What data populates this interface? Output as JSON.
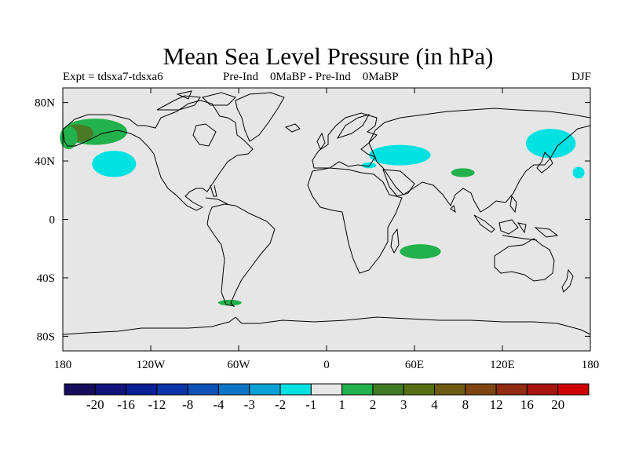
{
  "title": "Mean Sea Level Pressure (in hPa)",
  "subtitle_left": "Expt = tdsxa7-tdsxa6",
  "subtitle_center": "Pre-Ind    0MaBP - Pre-Ind    0MaBP",
  "subtitle_right": "DJF",
  "map": {
    "lon_range": [
      -180,
      180
    ],
    "lat_range": [
      -90,
      90
    ],
    "ocean_color": "#e6e6e6",
    "x_ticks": [
      {
        "lon": -180,
        "label": "180"
      },
      {
        "lon": -120,
        "label": "120W"
      },
      {
        "lon": -60,
        "label": "60W"
      },
      {
        "lon": 0,
        "label": "0"
      },
      {
        "lon": 60,
        "label": "60E"
      },
      {
        "lon": 120,
        "label": "120E"
      },
      {
        "lon": 180,
        "label": "180"
      }
    ],
    "y_ticks": [
      {
        "lat": 80,
        "label": "80N"
      },
      {
        "lat": 40,
        "label": "40N"
      },
      {
        "lat": 0,
        "label": "0"
      },
      {
        "lat": -40,
        "label": "40S"
      },
      {
        "lat": -80,
        "label": "80S"
      }
    ]
  },
  "anomaly_regions": [
    {
      "name": "alaska-high",
      "color": "#22b14c",
      "lon": -158,
      "lat": 60,
      "rlon": 22,
      "rlat": 9
    },
    {
      "name": "alaska-core",
      "color": "#4a7a25",
      "lon": -170,
      "lat": 59,
      "rlon": 11,
      "rlat": 6
    },
    {
      "name": "aleutian-high-west",
      "color": "#22b14c",
      "lon": -176,
      "lat": 56,
      "rlon": 6,
      "rlat": 8
    },
    {
      "name": "pacific-low",
      "color": "#00e1e1",
      "lon": -145,
      "lat": 38,
      "rlon": 15,
      "rlat": 9
    },
    {
      "name": "asia-low",
      "color": "#00e1e1",
      "lon": 50,
      "lat": 44,
      "rlon": 21,
      "rlat": 7
    },
    {
      "name": "turkey-low",
      "color": "#00e1e1",
      "lon": 29,
      "lat": 37,
      "rlon": 5,
      "rlat": 2
    },
    {
      "name": "tibet-high",
      "color": "#22b14c",
      "lon": 93,
      "lat": 32,
      "rlon": 8,
      "rlat": 3
    },
    {
      "name": "kamchatka-low",
      "color": "#00e1e1",
      "lon": 153,
      "lat": 52,
      "rlon": 17,
      "rlat": 10
    },
    {
      "name": "north-pacific-low-east",
      "color": "#00e1e1",
      "lon": 172,
      "lat": 32,
      "rlon": 4,
      "rlat": 4
    },
    {
      "name": "indian-ocean-high",
      "color": "#22b14c",
      "lon": 64,
      "lat": -22,
      "rlon": 14,
      "rlat": 5
    },
    {
      "name": "drake-high",
      "color": "#22b14c",
      "lon": -66,
      "lat": -57,
      "rlon": 8,
      "rlat": 2
    }
  ],
  "colorbar": {
    "colors": [
      "#170c5c",
      "#10137a",
      "#0a1e96",
      "#0a34a8",
      "#0a52b6",
      "#0a74c6",
      "#0aa2d6",
      "#00e1e1",
      "#e6e6e6",
      "#22b14c",
      "#3f7a22",
      "#566f14",
      "#6e5a12",
      "#7e4512",
      "#902a10",
      "#a8140e",
      "#cc0000"
    ],
    "labels": [
      "-20",
      "-16",
      "-12",
      "-8",
      "-4",
      "-3",
      "-2",
      "-1",
      "1",
      "2",
      "3",
      "4",
      "8",
      "12",
      "16",
      "20"
    ]
  }
}
